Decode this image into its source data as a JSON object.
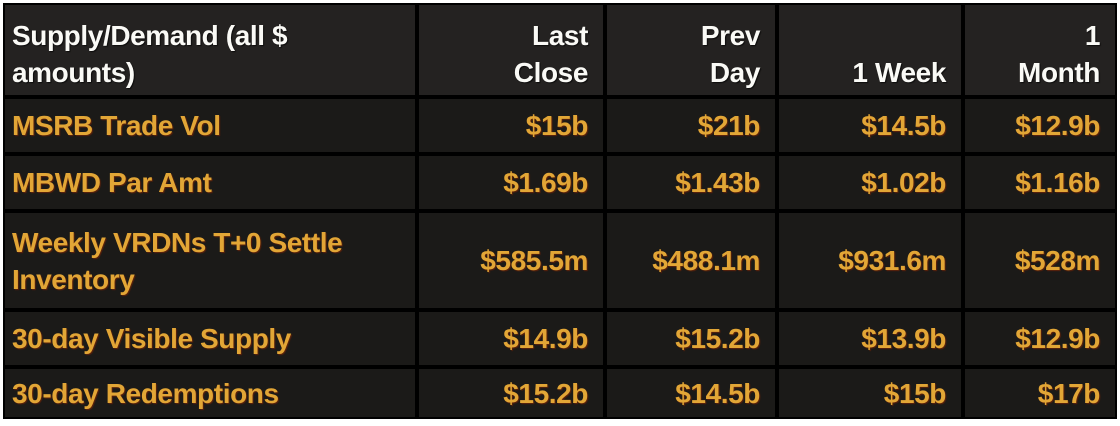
{
  "accent_colors": {
    "amber_text": "#e2a636",
    "header_text": "#fafaf6",
    "cell_background": "#1b1a18",
    "header_background": "#242221",
    "gridline": "#000000",
    "frame": "#ffffff"
  },
  "table": {
    "header": {
      "label": "Supply/Demand (all $\namounts)",
      "columns": [
        "Last\nClose",
        "Prev\nDay",
        "1 Week",
        "1\nMonth"
      ]
    },
    "rows": [
      {
        "label": "MSRB Trade Vol",
        "values": [
          "$15b",
          "$21b",
          "$14.5b",
          "$12.9b"
        ]
      },
      {
        "label": "MBWD Par Amt",
        "values": [
          "$1.69b",
          "$1.43b",
          "$1.02b",
          "$1.16b"
        ]
      },
      {
        "label": "Weekly VRDNs T+0 Settle\nInventory",
        "values": [
          "$585.5m",
          "$488.1m",
          "$931.6m",
          "$528m"
        ]
      },
      {
        "label": "30-day Visible Supply",
        "values": [
          "$14.9b",
          "$15.2b",
          "$13.9b",
          "$12.9b"
        ]
      },
      {
        "label": "30-day Redemptions",
        "values": [
          "$15.2b",
          "$14.5b",
          "$15b",
          "$17b"
        ]
      }
    ]
  },
  "chart_data": {
    "type": "table",
    "title": "Supply/Demand (all $ amounts)",
    "columns": [
      "Last Close",
      "Prev Day",
      "1 Week",
      "1 Month"
    ],
    "row_labels": [
      "MSRB Trade Vol",
      "MBWD Par Amt",
      "Weekly VRDNs T+0 Settle Inventory",
      "30-day Visible Supply",
      "30-day Redemptions"
    ],
    "cells": [
      [
        "$15b",
        "$21b",
        "$14.5b",
        "$12.9b"
      ],
      [
        "$1.69b",
        "$1.43b",
        "$1.02b",
        "$1.16b"
      ],
      [
        "$585.5m",
        "$488.1m",
        "$931.6m",
        "$528m"
      ],
      [
        "$14.9b",
        "$15.2b",
        "$13.9b",
        "$12.9b"
      ],
      [
        "$15.2b",
        "$14.5b",
        "$15b",
        "$17b"
      ]
    ]
  }
}
